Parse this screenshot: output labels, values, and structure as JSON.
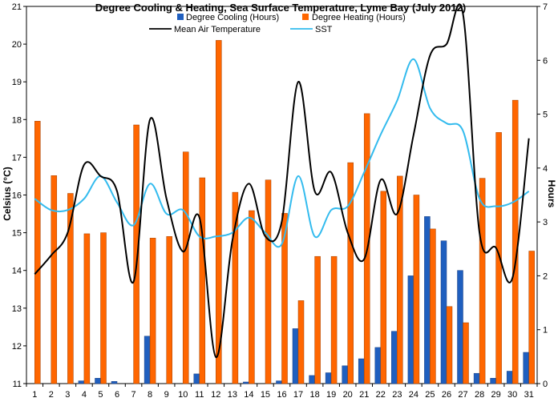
{
  "chart_data": {
    "type": "bar",
    "title": "Degree Cooling & Heating, Sea Surface Temperature, Lyme Bay (July 2012)",
    "ylabel_left": "Celsius (°C)",
    "ylabel_right": "Hours",
    "ylim_left": [
      11,
      21
    ],
    "ylim_right": [
      0,
      7
    ],
    "yticks_left": [
      11,
      12,
      13,
      14,
      15,
      16,
      17,
      18,
      19,
      20,
      21
    ],
    "yticks_right": [
      0,
      1,
      2,
      3,
      4,
      5,
      6,
      7
    ],
    "categories": [
      "1",
      "2",
      "3",
      "4",
      "5",
      "6",
      "7",
      "8",
      "9",
      "10",
      "11",
      "12",
      "13",
      "14",
      "15",
      "16",
      "17",
      "18",
      "19",
      "20",
      "21",
      "22",
      "23",
      "24",
      "25",
      "26",
      "27",
      "28",
      "29",
      "30",
      "31"
    ],
    "series": [
      {
        "name": "Degree Cooling (Hours)",
        "axis": "right",
        "kind": "bar",
        "color": "#1f5fbf",
        "values": [
          0,
          0,
          0,
          0.05,
          0.1,
          0.04,
          0,
          0.88,
          0,
          0,
          0.18,
          0,
          0,
          0.03,
          0,
          0.05,
          1.02,
          0.15,
          0.2,
          0.33,
          0.46,
          0.67,
          0.97,
          2,
          3.1,
          2.65,
          2.1,
          0.19,
          0.1,
          0.23,
          0.58
        ]
      },
      {
        "name": "Degree Heating (Hours)",
        "axis": "right",
        "kind": "bar",
        "color": "#ff6600",
        "values": [
          4.87,
          3.86,
          3.53,
          2.78,
          2.8,
          0,
          4.8,
          2.7,
          2.73,
          4.3,
          3.82,
          6.37,
          3.55,
          3.21,
          3.78,
          3.16,
          1.54,
          2.36,
          2.36,
          4.1,
          5.01,
          3.57,
          3.85,
          3.5,
          2.87,
          1.43,
          1.13,
          3.81,
          4.66,
          5.26,
          2.46
        ]
      },
      {
        "name": "Mean Air Temperature",
        "axis": "left",
        "kind": "line",
        "color": "#000000",
        "values": [
          13.9,
          14.4,
          15.0,
          16.8,
          16.5,
          16.1,
          13.7,
          18.0,
          15.9,
          14.5,
          15.4,
          11.7,
          14.8,
          16.3,
          14.9,
          15.3,
          19.0,
          16.1,
          16.6,
          15.0,
          14.3,
          16.4,
          15.5,
          17.6,
          19.7,
          20.0,
          20.8,
          15.0,
          14.6,
          13.8,
          17.5
        ]
      },
      {
        "name": "SST",
        "axis": "left",
        "kind": "line",
        "color": "#33bbee",
        "values": [
          15.9,
          15.6,
          15.6,
          15.9,
          16.5,
          15.8,
          15.2,
          16.3,
          15.5,
          15.6,
          14.9,
          14.9,
          15.0,
          15.4,
          15.0,
          14.7,
          16.5,
          14.9,
          15.6,
          15.7,
          16.6,
          17.6,
          18.5,
          19.6,
          18.3,
          17.9,
          17.7,
          15.9,
          15.7,
          15.8,
          16.1
        ]
      }
    ],
    "legend_position": "top-center",
    "grid": false
  }
}
